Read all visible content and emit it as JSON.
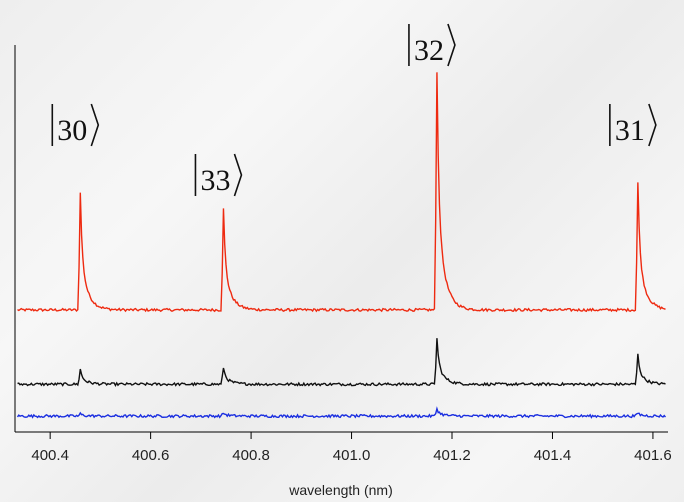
{
  "chart_data": {
    "type": "line",
    "title": "",
    "xlabel": "wavelength (nm)",
    "ylabel": "",
    "xlim": [
      400.33,
      401.63
    ],
    "ylim": [
      -0.15,
      3.75
    ],
    "xticks": [
      "400.4",
      "400.6",
      "400.8",
      "401.0",
      "401.2",
      "401.4",
      "401.6"
    ],
    "grid": false,
    "legend": "none",
    "peak_labels": [
      {
        "text": "30",
        "x": 400.46
      },
      {
        "text": "33",
        "x": 400.745
      },
      {
        "text": "32",
        "x": 401.17
      },
      {
        "text": "31",
        "x": 401.57
      }
    ],
    "series": [
      {
        "color": "#ee2a10",
        "baseline": 1.0,
        "peaks": [
          {
            "x": 400.46,
            "height": 1.1
          },
          {
            "x": 400.745,
            "height": 0.95
          },
          {
            "x": 401.17,
            "height": 2.25
          },
          {
            "x": 401.57,
            "height": 1.2
          }
        ]
      },
      {
        "color": "#111111",
        "baseline": 0.3,
        "peaks": [
          {
            "x": 400.46,
            "height": 0.14
          },
          {
            "x": 400.745,
            "height": 0.16
          },
          {
            "x": 401.17,
            "height": 0.43
          },
          {
            "x": 401.57,
            "height": 0.28
          }
        ]
      },
      {
        "color": "#1a2ee0",
        "baseline": 0.0,
        "peaks": [
          {
            "x": 400.46,
            "height": 0.02
          },
          {
            "x": 400.745,
            "height": 0.03
          },
          {
            "x": 401.17,
            "height": 0.07
          },
          {
            "x": 401.57,
            "height": 0.03
          }
        ]
      }
    ]
  }
}
